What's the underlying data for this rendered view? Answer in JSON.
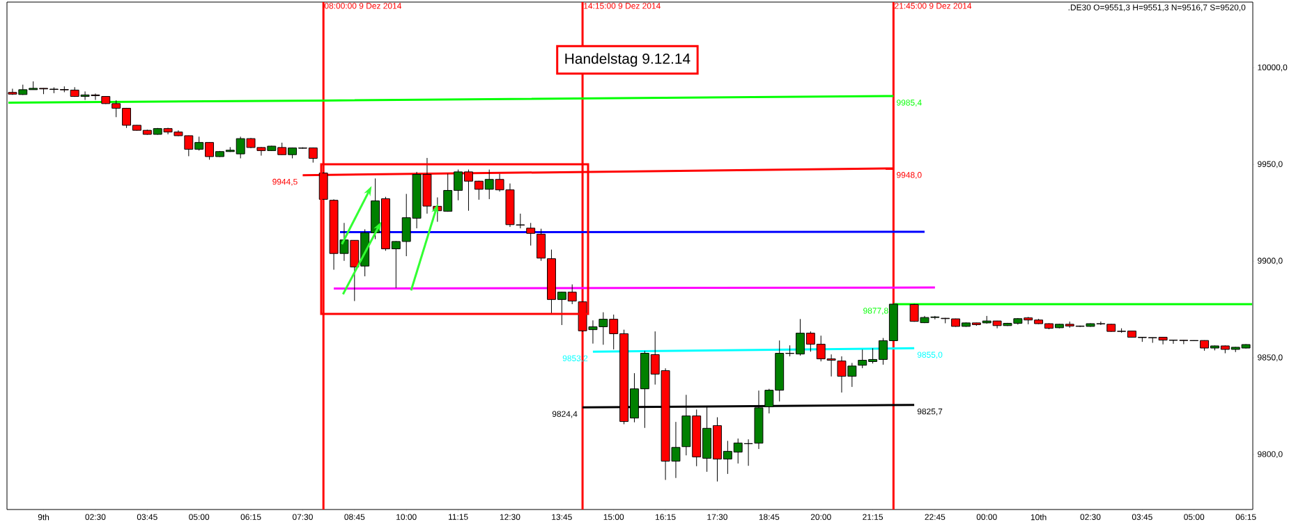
{
  "chart_data": {
    "type": "candlestick",
    "x": [
      "2014-12-09T00:30",
      "2014-12-09T00:45",
      "2014-12-09T01:00",
      "2014-12-09T01:15",
      "2014-12-09T01:30",
      "2014-12-09T01:45",
      "2014-12-09T02:00",
      "2014-12-09T02:15",
      "2014-12-09T02:30",
      "2014-12-09T02:45",
      "2014-12-09T03:00",
      "2014-12-09T03:15",
      "2014-12-09T03:30",
      "2014-12-09T03:45",
      "2014-12-09T04:00",
      "2014-12-09T04:15",
      "2014-12-09T04:30",
      "2014-12-09T04:45",
      "2014-12-09T05:00",
      "2014-12-09T05:15",
      "2014-12-09T05:30",
      "2014-12-09T05:45",
      "2014-12-09T06:00",
      "2014-12-09T06:15",
      "2014-12-09T06:30",
      "2014-12-09T06:45",
      "2014-12-09T07:00",
      "2014-12-09T07:15",
      "2014-12-09T07:30",
      "2014-12-09T07:45",
      "2014-12-09T08:00",
      "2014-12-09T08:15",
      "2014-12-09T08:30",
      "2014-12-09T08:45",
      "2014-12-09T09:00",
      "2014-12-09T09:15",
      "2014-12-09T09:30",
      "2014-12-09T09:45",
      "2014-12-09T10:00",
      "2014-12-09T10:15",
      "2014-12-09T10:30",
      "2014-12-09T10:45",
      "2014-12-09T11:00",
      "2014-12-09T11:15",
      "2014-12-09T11:30",
      "2014-12-09T11:45",
      "2014-12-09T12:00",
      "2014-12-09T12:15",
      "2014-12-09T12:30",
      "2014-12-09T12:45",
      "2014-12-09T13:00",
      "2014-12-09T13:15",
      "2014-12-09T13:30",
      "2014-12-09T13:45",
      "2014-12-09T14:00",
      "2014-12-09T14:15",
      "2014-12-09T14:30",
      "2014-12-09T14:45",
      "2014-12-09T15:00",
      "2014-12-09T15:15",
      "2014-12-09T15:30",
      "2014-12-09T15:45",
      "2014-12-09T16:00",
      "2014-12-09T16:15",
      "2014-12-09T16:30",
      "2014-12-09T16:45",
      "2014-12-09T17:00",
      "2014-12-09T17:15",
      "2014-12-09T17:30",
      "2014-12-09T17:45",
      "2014-12-09T18:00",
      "2014-12-09T18:15",
      "2014-12-09T18:30",
      "2014-12-09T18:45",
      "2014-12-09T19:00",
      "2014-12-09T19:15",
      "2014-12-09T19:30",
      "2014-12-09T19:45",
      "2014-12-09T20:00",
      "2014-12-09T20:15",
      "2014-12-09T20:30",
      "2014-12-09T20:45",
      "2014-12-09T21:00",
      "2014-12-09T21:15",
      "2014-12-09T21:30",
      "2014-12-09T21:45",
      "2014-12-09T22:15",
      "2014-12-09T22:30",
      "2014-12-09T22:45",
      "2014-12-09T23:00",
      "2014-12-09T23:15",
      "2014-12-09T23:30",
      "2014-12-09T23:45",
      "2014-12-10T00:00",
      "2014-12-10T00:15",
      "2014-12-10T00:30",
      "2014-12-10T00:45",
      "2014-12-10T01:00",
      "2014-12-10T01:15",
      "2014-12-10T01:30",
      "2014-12-10T01:45",
      "2014-12-10T02:00",
      "2014-12-10T02:15",
      "2014-12-10T02:30",
      "2014-12-10T02:45",
      "2014-12-10T03:00",
      "2014-12-10T03:15",
      "2014-12-10T03:30",
      "2014-12-10T03:45",
      "2014-12-10T04:00",
      "2014-12-10T04:15",
      "2014-12-10T04:30",
      "2014-12-10T04:45",
      "2014-12-10T05:00",
      "2014-12-10T05:15",
      "2014-12-10T05:30",
      "2014-12-10T05:45",
      "2014-12-10T06:00",
      "2014-12-10T06:15"
    ],
    "ohlc": [
      [
        9987.3,
        9989.2,
        9986.0,
        9986.4
      ],
      [
        9986.2,
        9991.3,
        9986.0,
        9988.7
      ],
      [
        9988.7,
        9993.0,
        9988.7,
        9989.4
      ],
      [
        9989.4,
        9989.5,
        9986.4,
        9989.1
      ],
      [
        9989.0,
        9989.9,
        9986.9,
        9988.8
      ],
      [
        9988.8,
        9990.4,
        9987.4,
        9988.6
      ],
      [
        9988.5,
        9990.0,
        9985.0,
        9985.2
      ],
      [
        9985.2,
        9987.8,
        9983.4,
        9986.0
      ],
      [
        9986.0,
        9986.7,
        9983.4,
        9985.6
      ],
      [
        9985.2,
        9985.3,
        9981.3,
        9981.5
      ],
      [
        9981.5,
        9983.2,
        9974.5,
        9979.1
      ],
      [
        9979.1,
        9979.3,
        9968.9,
        9970.3
      ],
      [
        9970.3,
        9970.4,
        9967.5,
        9967.7
      ],
      [
        9967.7,
        9968.0,
        9965.4,
        9965.6
      ],
      [
        9965.6,
        9968.9,
        9965.4,
        9968.6
      ],
      [
        9968.6,
        9969.0,
        9965.6,
        9966.8
      ],
      [
        9966.8,
        9967.7,
        9964.7,
        9964.9
      ],
      [
        9964.9,
        9965.0,
        9954.3,
        9957.9
      ],
      [
        9957.9,
        9964.4,
        9957.2,
        9961.4
      ],
      [
        9961.4,
        9961.5,
        9952.5,
        9954.1
      ],
      [
        9954.1,
        9957.0,
        9953.9,
        9956.7
      ],
      [
        9956.7,
        9959.0,
        9956.5,
        9957.4
      ],
      [
        9955.5,
        9964.4,
        9953.2,
        9963.4
      ],
      [
        9963.4,
        9963.7,
        9958.5,
        9958.8
      ],
      [
        9958.8,
        9959.0,
        9954.6,
        9957.2
      ],
      [
        9957.2,
        9959.7,
        9957.0,
        9959.5
      ],
      [
        9958.8,
        9961.3,
        9955.0,
        9955.1
      ],
      [
        9955.1,
        9958.8,
        9953.2,
        9958.6
      ],
      [
        9958.6,
        9958.9,
        9958.2,
        9958.4
      ],
      [
        9958.6,
        9958.8,
        9951.0,
        9953.2
      ],
      [
        9945.6,
        9946.0,
        9931.8,
        9932.0
      ],
      [
        9931.5,
        9932.0,
        9895.6,
        9904.0
      ],
      [
        9904.0,
        9919.8,
        9900.2,
        9911.0
      ],
      [
        9910.8,
        9910.8,
        9879.4,
        9897.0
      ],
      [
        9897.5,
        9916.5,
        9892.2,
        9914.7
      ],
      [
        9914.7,
        9942.8,
        9911.4,
        9931.2
      ],
      [
        9932.3,
        9933.3,
        9905.4,
        9906.4
      ],
      [
        9906.4,
        9910.4,
        9886.2,
        9910.2
      ],
      [
        9910.2,
        9934.8,
        9902.6,
        9922.5
      ],
      [
        9922.2,
        9946.2,
        9917.0,
        9944.9
      ],
      [
        9944.9,
        9953.4,
        9924.6,
        9928.5
      ],
      [
        9928.4,
        9933.0,
        9920.4,
        9926.1
      ],
      [
        9925.8,
        9945.3,
        9925.6,
        9936.6
      ],
      [
        9936.6,
        9947.4,
        9931.5,
        9946.2
      ],
      [
        9946.2,
        9947.4,
        9926.1,
        9941.4
      ],
      [
        9941.4,
        9941.6,
        9931.8,
        9937.2
      ],
      [
        9937.2,
        9947.4,
        9932.1,
        9942.3
      ],
      [
        9942.3,
        9945.2,
        9936.0,
        9936.9
      ],
      [
        9936.9,
        9940.2,
        9917.7,
        9918.9
      ],
      [
        9918.8,
        9924.6,
        9917.0,
        9918.7
      ],
      [
        9917.1,
        9919.8,
        9908.1,
        9914.4
      ],
      [
        9914.0,
        9916.8,
        9900.2,
        9901.6
      ],
      [
        9901.3,
        9906.0,
        9873.0,
        9880.2
      ],
      [
        9880.2,
        9884.2,
        9867.0,
        9884.0
      ],
      [
        9884.0,
        9888.0,
        9877.8,
        9879.4
      ],
      [
        9879.0,
        9879.2,
        9863.4,
        9864.0
      ],
      [
        9864.6,
        9869.4,
        9857.4,
        9866.1
      ],
      [
        9866.1,
        9873.6,
        9856.8,
        9870.0
      ],
      [
        9870.0,
        9872.4,
        9854.4,
        9862.5
      ],
      [
        9862.5,
        9864.6,
        9815.7,
        9817.1
      ],
      [
        9818.9,
        9842.1,
        9816.7,
        9834.0
      ],
      [
        9834.0,
        9853.6,
        9813.8,
        9852.4
      ],
      [
        9851.7,
        9863.7,
        9836.2,
        9841.6
      ],
      [
        9843.4,
        9844.6,
        9786.9,
        9796.6
      ],
      [
        9796.6,
        9816.9,
        9787.9,
        9803.7
      ],
      [
        9804.1,
        9830.9,
        9799.6,
        9820.0
      ],
      [
        9820.0,
        9823.3,
        9794.0,
        9798.8
      ],
      [
        9798.1,
        9825.1,
        9791.1,
        9813.6
      ],
      [
        9815.0,
        9819.3,
        9786.1,
        9797.7
      ],
      [
        9797.7,
        9807.1,
        9790.0,
        9801.7
      ],
      [
        9801.3,
        9808.3,
        9795.4,
        9806.0
      ],
      [
        9805.7,
        9807.9,
        9794.2,
        9805.6
      ],
      [
        9805.9,
        9833.1,
        9802.9,
        9824.2
      ],
      [
        9824.7,
        9834.0,
        9821.3,
        9833.3
      ],
      [
        9833.3,
        9859.0,
        9827.5,
        9852.4
      ],
      [
        9852.3,
        9856.5,
        9850.8,
        9852.4
      ],
      [
        9852.0,
        9870.1,
        9851.2,
        9862.8
      ],
      [
        9862.8,
        9863.7,
        9853.2,
        9857.1
      ],
      [
        9857.1,
        9861.5,
        9848.2,
        9849.5
      ],
      [
        9849.5,
        9851.8,
        9840.4,
        9848.8
      ],
      [
        9848.4,
        9850.8,
        9832.1,
        9840.5
      ],
      [
        9840.5,
        9847.4,
        9835.0,
        9845.8
      ],
      [
        9846.2,
        9854.3,
        9844.7,
        9848.8
      ],
      [
        9848.1,
        9855.0,
        9847.1,
        9849.2
      ],
      [
        9849.2,
        9860.3,
        9846.5,
        9858.9
      ],
      [
        9858.9,
        9878.0,
        9858.7,
        9877.8
      ],
      [
        9877.6,
        9878.0,
        9868.7,
        9868.9
      ],
      [
        9868.2,
        9871.7,
        9868.0,
        9870.9
      ],
      [
        9870.9,
        9871.7,
        9869.9,
        9871.2
      ],
      [
        9870.5,
        9870.7,
        9867.9,
        9870.3
      ],
      [
        9870.2,
        9870.3,
        9866.1,
        9866.3
      ],
      [
        9866.3,
        9868.3,
        9866.1,
        9868.1
      ],
      [
        9868.1,
        9868.2,
        9866.6,
        9867.2
      ],
      [
        9868.1,
        9871.7,
        9867.7,
        9869.1
      ],
      [
        9869.1,
        9869.2,
        9865.3,
        9866.7
      ],
      [
        9866.7,
        9868.1,
        9866.5,
        9867.9
      ],
      [
        9867.9,
        9870.6,
        9867.2,
        9870.3
      ],
      [
        9870.7,
        9871.2,
        9867.4,
        9869.6
      ],
      [
        9869.6,
        9870.2,
        9867.5,
        9867.7
      ],
      [
        9867.7,
        9867.9,
        9864.8,
        9865.3
      ],
      [
        9865.6,
        9867.6,
        9865.3,
        9867.4
      ],
      [
        9867.4,
        9868.8,
        9865.6,
        9866.5
      ],
      [
        9866.5,
        9866.7,
        9866.0,
        9866.3
      ],
      [
        9866.3,
        9867.9,
        9866.1,
        9867.7
      ],
      [
        9867.7,
        9868.8,
        9867.0,
        9867.6
      ],
      [
        9867.4,
        9867.6,
        9863.5,
        9863.7
      ],
      [
        9863.8,
        9865.3,
        9863.0,
        9863.7
      ],
      [
        9863.9,
        9864.0,
        9860.5,
        9860.7
      ],
      [
        9860.7,
        9860.8,
        9858.3,
        9860.5
      ],
      [
        9860.5,
        9860.6,
        9857.8,
        9860.4
      ],
      [
        9860.7,
        9860.8,
        9857.0,
        9859.2
      ],
      [
        9859.2,
        9859.3,
        9857.3,
        9859.1
      ],
      [
        9859.1,
        9859.2,
        9857.1,
        9859.0
      ],
      [
        9859.0,
        9859.1,
        9858.7,
        9858.9
      ],
      [
        9859.0,
        9859.1,
        9853.7,
        9855.1
      ],
      [
        9855.1,
        9856.4,
        9853.9,
        9856.2
      ],
      [
        9856.2,
        9856.4,
        9852.4,
        9854.4
      ],
      [
        9854.4,
        9855.7,
        9853.0,
        9855.5
      ],
      [
        9855.1,
        9857.1,
        9854.9,
        9856.9
      ]
    ],
    "colors": [
      "#ff0000",
      "#008000",
      "#008000",
      "#ff0000",
      "#ff0000",
      "#ff0000",
      "#ff0000",
      "#008000",
      "#ff0000",
      "#ff0000",
      "#ff0000",
      "#ff0000",
      "#ff0000",
      "#ff0000",
      "#008000",
      "#ff0000",
      "#ff0000",
      "#ff0000",
      "#008000",
      "#ff0000",
      "#008000",
      "#008000",
      "#008000",
      "#ff0000",
      "#ff0000",
      "#008000",
      "#ff0000",
      "#008000",
      "#ff0000",
      "#ff0000",
      "#ff0000",
      "#ff0000",
      "#008000",
      "#ff0000",
      "#008000",
      "#008000",
      "#ff0000",
      "#008000",
      "#008000",
      "#008000",
      "#ff0000",
      "#ff0000",
      "#008000",
      "#008000",
      "#ff0000",
      "#ff0000",
      "#008000",
      "#ff0000",
      "#ff0000",
      "#ff0000",
      "#ff0000",
      "#ff0000",
      "#ff0000",
      "#008000",
      "#ff0000",
      "#ff0000",
      "#008000",
      "#008000",
      "#ff0000",
      "#ff0000",
      "#008000",
      "#008000",
      "#ff0000",
      "#ff0000",
      "#008000",
      "#008000",
      "#ff0000",
      "#008000",
      "#ff0000",
      "#008000",
      "#008000",
      "#ff0000",
      "#008000",
      "#008000",
      "#008000",
      "#008000",
      "#008000",
      "#ff0000",
      "#ff0000",
      "#ff0000",
      "#ff0000",
      "#008000",
      "#008000",
      "#008000",
      "#008000",
      "#008000",
      "#ff0000",
      "#008000",
      "#008000",
      "#ff0000",
      "#ff0000",
      "#008000",
      "#ff0000",
      "#008000",
      "#ff0000",
      "#008000",
      "#008000",
      "#ff0000",
      "#ff0000",
      "#ff0000",
      "#008000",
      "#ff0000",
      "#ff0000",
      "#008000",
      "#ff0000",
      "#ff0000",
      "#ff0000",
      "#ff0000",
      "#ff0000",
      "#ff0000",
      "#ff0000",
      "#ff0000",
      "#ff0000",
      "#ff0000",
      "#ff0000",
      "#008000",
      "#ff0000",
      "#008000",
      "#008000"
    ],
    "series": [
      {
        "type": "line",
        "color": "#00ff00",
        "x": [
          "2014-12-09T00:24",
          "2014-12-09T08:00",
          "2014-12-09T21:45"
        ],
        "values": [
          9982.0,
          9983.1,
          9985.4
        ]
      },
      {
        "type": "line",
        "color": "#ff0000",
        "x": [
          "2014-12-09T07:30",
          "2014-12-09T21:45"
        ],
        "values": [
          9944.5,
          9948.0
        ]
      },
      {
        "type": "line",
        "color": "#0000ff",
        "x": [
          "2014-12-09T08:24",
          "2014-12-09T22:30"
        ],
        "values": [
          9915.0,
          9915.2
        ]
      },
      {
        "type": "line",
        "color": "#ff00ff",
        "x": [
          "2014-12-09T08:15",
          "2014-12-09T22:45"
        ],
        "values": [
          9885.9,
          9886.4
        ]
      },
      {
        "type": "line",
        "color": "#00ffff",
        "x": [
          "2014-12-09T14:30",
          "2014-12-09T22:15"
        ],
        "values": [
          9853.2,
          9855.0
        ]
      },
      {
        "type": "line",
        "color": "#000000",
        "x": [
          "2014-12-09T14:15",
          "2014-12-09T22:15"
        ],
        "values": [
          9824.4,
          9825.7
        ]
      },
      {
        "type": "line",
        "color": "#00ff00",
        "x": [
          "2014-12-09T21:45",
          "2014-12-10T06:24"
        ],
        "values": [
          9877.8,
          9877.8
        ]
      }
    ],
    "ref_lines": [
      {
        "axis": "x",
        "value": "2014-12-09T08:00",
        "label": "08:00:00 9 Dez 2014",
        "color": "#ff0000"
      },
      {
        "axis": "x",
        "value": "2014-12-09T14:15",
        "label": "14:15:00 9 Dez 2014",
        "color": "#ff0000"
      },
      {
        "axis": "x",
        "value": "2014-12-09T21:45",
        "label": "21:45:00 9 Dez 2014",
        "color": "#ff0000"
      }
    ],
    "annotations": [
      "Handelstag 9.12.14",
      ".DE30 O=9551,3 H=9551,3 N=9516,7 S=9520,0",
      {
        "text": "9985,4",
        "x": "2014-12-09T21:45",
        "y": 9985.4
      },
      {
        "text": "9944,5",
        "x": "2014-12-09T07:30",
        "y": 9944.5
      },
      {
        "text": "9948,0",
        "x": "2014-12-09T21:45",
        "y": 9948.0
      },
      {
        "text": "9877,8",
        "x": "2014-12-09T21:45",
        "y": 9877.8
      },
      {
        "text": "9853,2",
        "x": "2014-12-09T14:30",
        "y": 9853.2
      },
      {
        "text": "9855,0",
        "x": "2014-12-09T22:15",
        "y": 9855.0
      },
      {
        "text": "9824,4",
        "x": "2014-12-09T14:15",
        "y": 9824.4
      },
      {
        "text": "9825,7",
        "x": "2014-12-09T22:15",
        "y": 9825.7
      }
    ],
    "xlim": [
      "2014-12-09T00:22",
      "2014-12-10T06:25"
    ],
    "xticks": [
      {
        "value": "2014-12-09T01:15",
        "label": "9th"
      },
      {
        "value": "2014-12-09T02:30",
        "label": "02:30"
      },
      {
        "value": "2014-12-09T03:45",
        "label": "03:45"
      },
      {
        "value": "2014-12-09T05:00",
        "label": "05:00"
      },
      {
        "value": "2014-12-09T06:15",
        "label": "06:15"
      },
      {
        "value": "2014-12-09T07:30",
        "label": "07:30"
      },
      {
        "value": "2014-12-09T08:45",
        "label": "08:45"
      },
      {
        "value": "2014-12-09T10:00",
        "label": "10:00"
      },
      {
        "value": "2014-12-09T11:15",
        "label": "11:15"
      },
      {
        "value": "2014-12-09T12:30",
        "label": "12:30"
      },
      {
        "value": "2014-12-09T13:45",
        "label": "13:45"
      },
      {
        "value": "2014-12-09T15:00",
        "label": "15:00"
      },
      {
        "value": "2014-12-09T16:15",
        "label": "16:15"
      },
      {
        "value": "2014-12-09T17:30",
        "label": "17:30"
      },
      {
        "value": "2014-12-09T18:45",
        "label": "18:45"
      },
      {
        "value": "2014-12-09T20:00",
        "label": "20:00"
      },
      {
        "value": "2014-12-09T21:15",
        "label": "21:15"
      },
      {
        "value": "2014-12-09T22:45",
        "label": "22:45"
      },
      {
        "value": "2014-12-10T00:00",
        "label": "00:00"
      },
      {
        "value": "2014-12-10T01:15",
        "label": "10th"
      },
      {
        "value": "2014-12-10T02:30",
        "label": "02:30"
      },
      {
        "value": "2014-12-10T03:45",
        "label": "03:45"
      },
      {
        "value": "2014-12-10T05:00",
        "label": "05:00"
      },
      {
        "value": "2014-12-10T06:15",
        "label": "06:15"
      }
    ],
    "ylim": [
      9771.6,
      10034.0
    ],
    "yticks": [
      {
        "value": 9800,
        "label": "9800,0"
      },
      {
        "value": 9850,
        "label": "9850,0"
      },
      {
        "value": 9900,
        "label": "9900,0"
      },
      {
        "value": 9950,
        "label": "9950,0"
      },
      {
        "value": 10000,
        "label": "10000,0"
      }
    ]
  }
}
